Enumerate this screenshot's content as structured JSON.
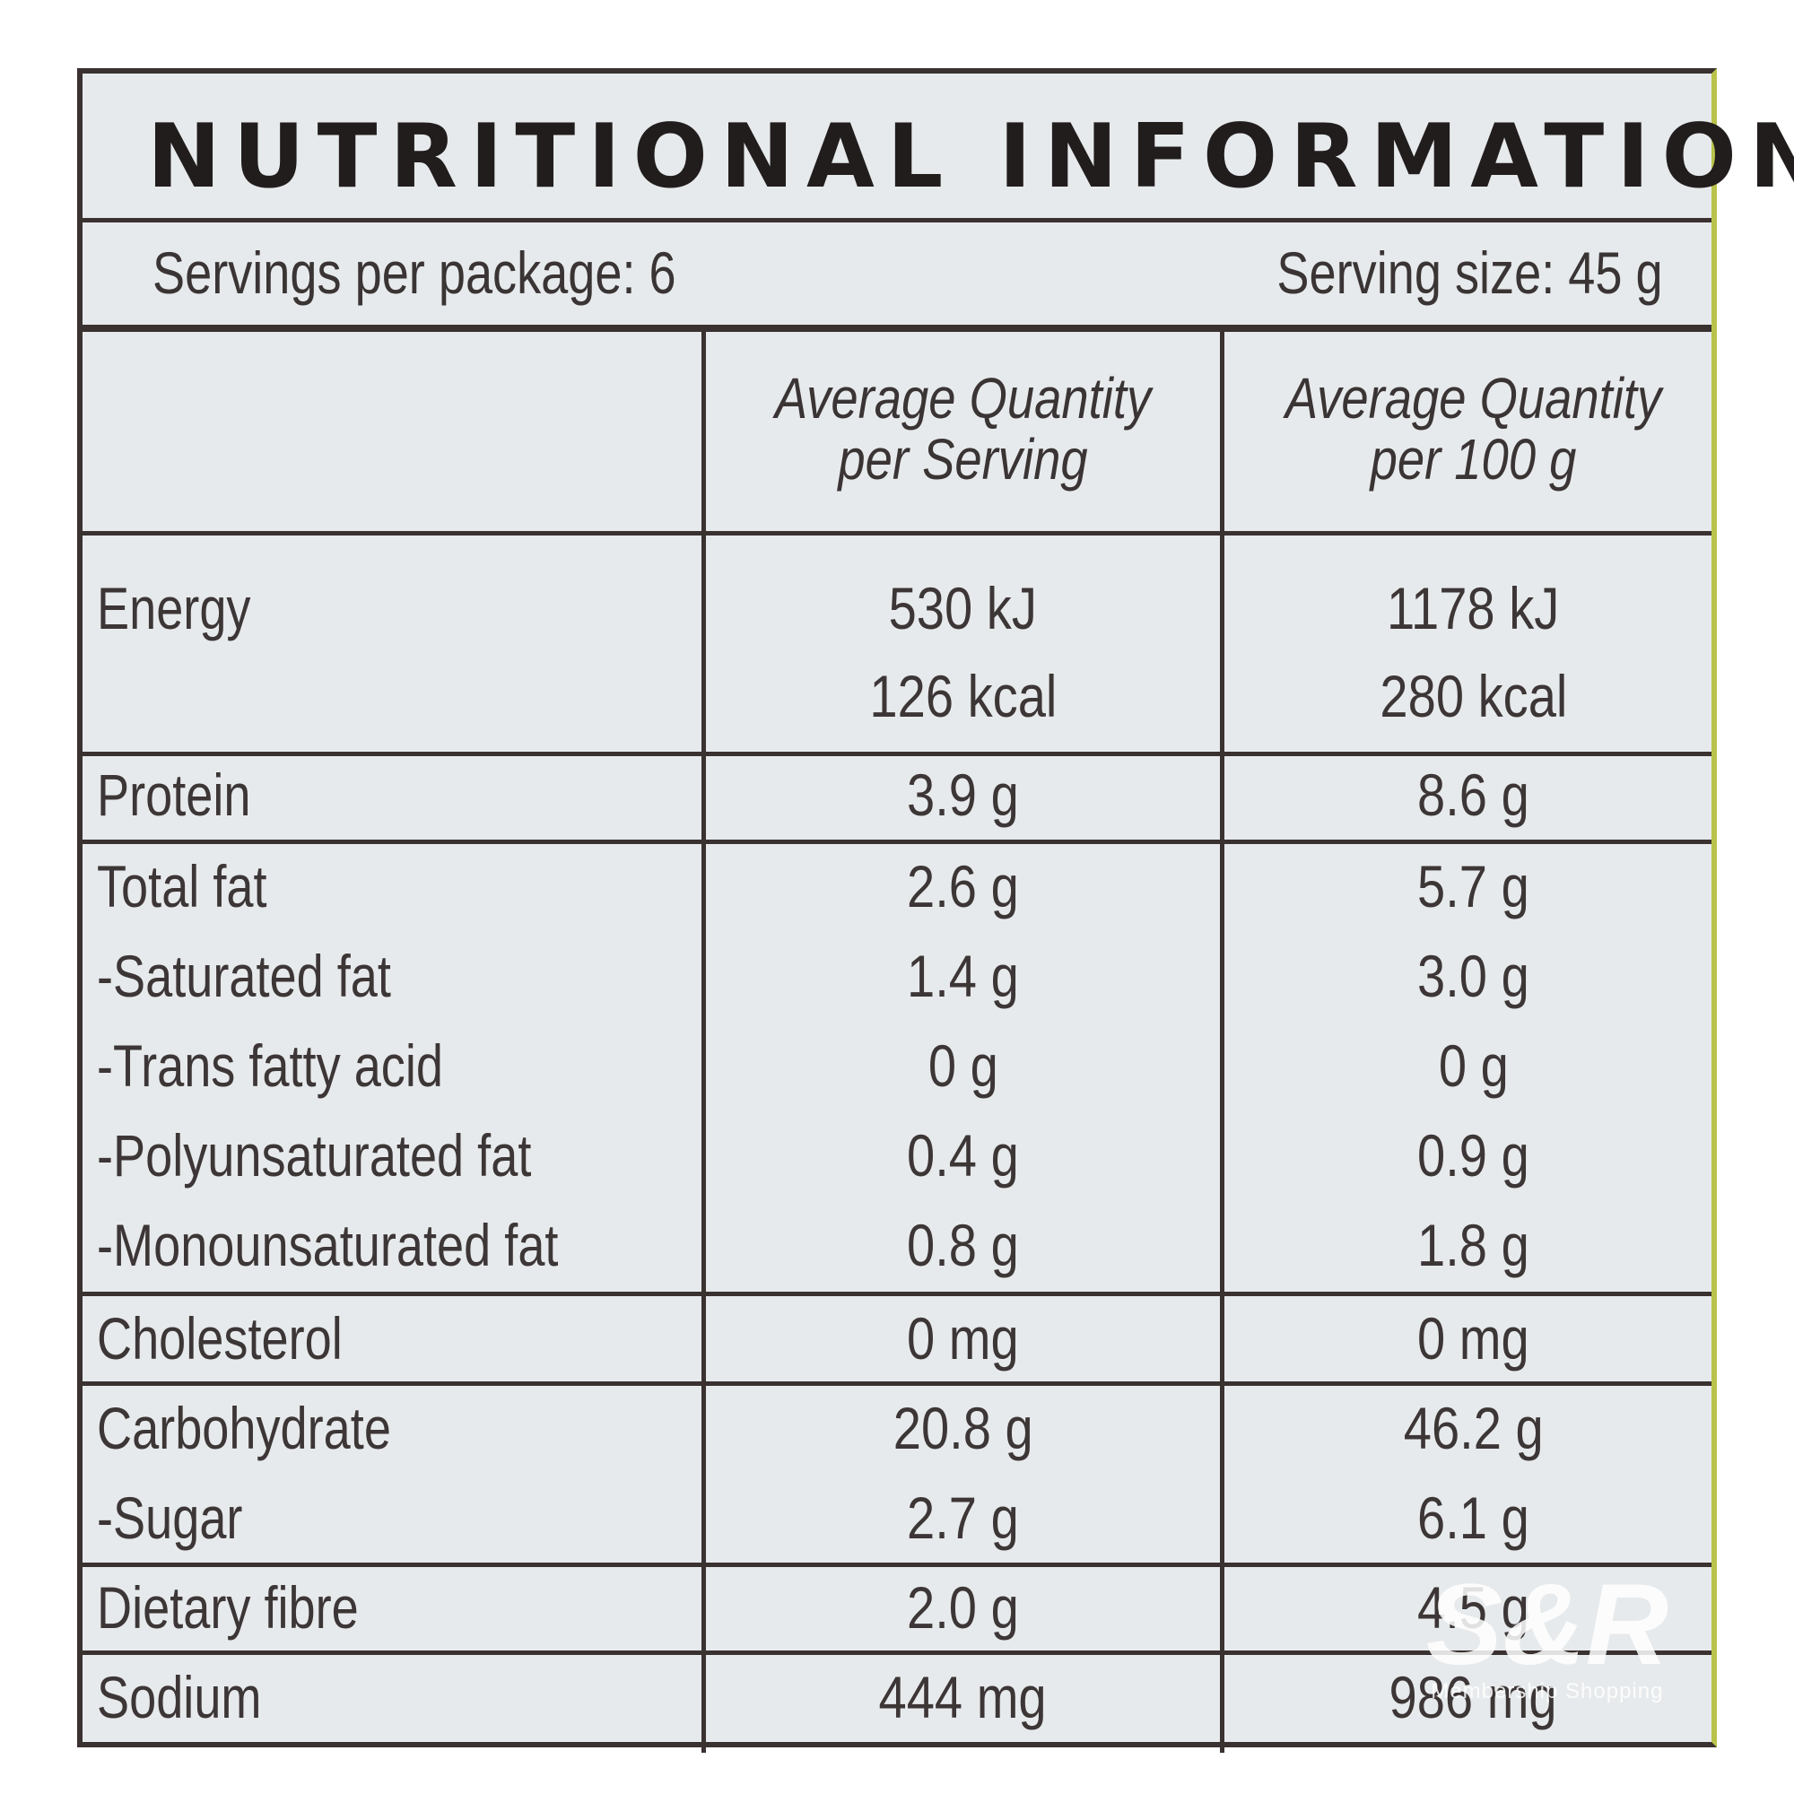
{
  "header": {
    "title": "NUTRITIONAL INFORMATION",
    "servings_per_package": "Servings per package: 6",
    "serving_size": "Serving size: 45 g"
  },
  "columns": {
    "per_serving_line1": "Average Quantity",
    "per_serving_line2": "per Serving",
    "per_100g_line1": "Average Quantity",
    "per_100g_line2": "per 100 g"
  },
  "rows": [
    {
      "name": "Energy",
      "per_serving": "530 kJ",
      "per_100g": "1178 kJ"
    },
    {
      "name": "",
      "per_serving": "126 kcal",
      "per_100g": "280 kcal"
    },
    {
      "name": "Protein",
      "per_serving": "3.9 g",
      "per_100g": "8.6 g"
    },
    {
      "name": "Total fat",
      "per_serving": "2.6 g",
      "per_100g": "5.7 g"
    },
    {
      "name": "-Saturated fat",
      "per_serving": "1.4 g",
      "per_100g": "3.0 g"
    },
    {
      "name": "-Trans fatty acid",
      "per_serving": "0 g",
      "per_100g": "0 g"
    },
    {
      "name": "-Polyunsaturated fat",
      "per_serving": "0.4 g",
      "per_100g": "0.9 g"
    },
    {
      "name": "-Monounsaturated fat",
      "per_serving": "0.8 g",
      "per_100g": "1.8 g"
    },
    {
      "name": "Cholesterol",
      "per_serving": "0 mg",
      "per_100g": "0 mg"
    },
    {
      "name": "Carbohydrate",
      "per_serving": "20.8 g",
      "per_100g": "46.2 g"
    },
    {
      "name": "-Sugar",
      "per_serving": "2.7 g",
      "per_100g": "6.1 g"
    },
    {
      "name": "Dietary fibre",
      "per_serving": "2.0 g",
      "per_100g": "4.5 g"
    },
    {
      "name": "Sodium",
      "per_serving": "444 mg",
      "per_100g": "986 mg"
    }
  ],
  "watermark": {
    "logo": "S&R",
    "tagline": "Membership Shopping"
  }
}
